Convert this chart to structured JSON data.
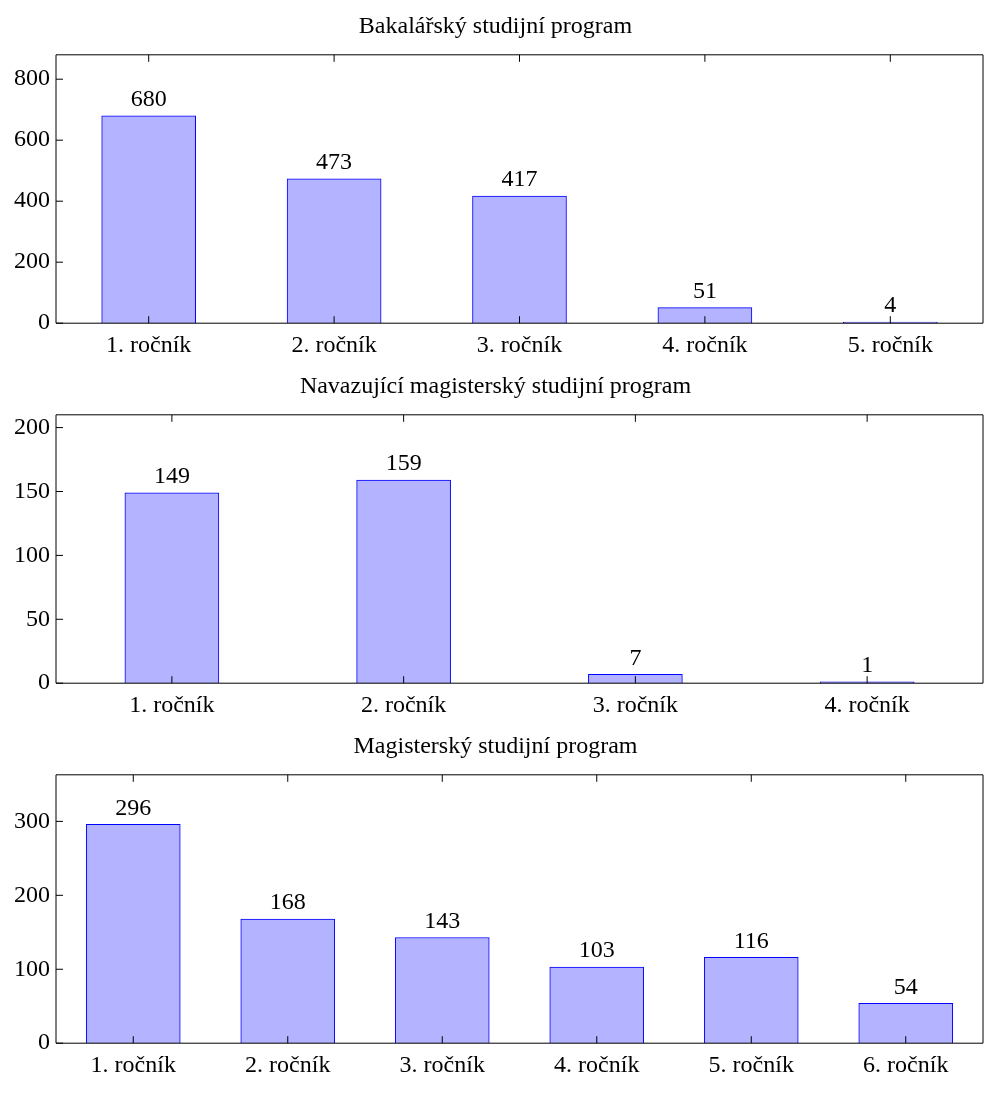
{
  "chart_data": [
    {
      "type": "bar",
      "title": "Bakalářský studijní program",
      "categories": [
        "1. ročník",
        "2. ročník",
        "3. ročník",
        "4. ročník",
        "5. ročník"
      ],
      "values": [
        680,
        473,
        417,
        51,
        4
      ],
      "color": "#b3b3ff",
      "ylim": [
        0,
        880
      ],
      "yticks": [
        0,
        200,
        400,
        600,
        800
      ],
      "data_labels": true,
      "grid": false,
      "legend": false
    },
    {
      "type": "bar",
      "title": "Navazující magisterský studijní program",
      "categories": [
        "1. ročník",
        "2. ročník",
        "3. ročník",
        "4. ročník"
      ],
      "values": [
        149,
        159,
        7,
        1
      ],
      "color": "#b3b3ff",
      "ylim": [
        0,
        210
      ],
      "yticks": [
        0,
        50,
        100,
        150,
        200
      ],
      "data_labels": true,
      "grid": false,
      "legend": false
    },
    {
      "type": "bar",
      "title": "Magisterský studijní program",
      "categories": [
        "1. ročník",
        "2. ročník",
        "3. ročník",
        "4. ročník",
        "5. ročník",
        "6. ročník"
      ],
      "values": [
        296,
        168,
        143,
        103,
        116,
        54
      ],
      "color": "#b3b3ff",
      "ylim": [
        0,
        363
      ],
      "yticks": [
        0,
        100,
        200,
        300
      ],
      "data_labels": true,
      "grid": false,
      "legend": false
    }
  ]
}
